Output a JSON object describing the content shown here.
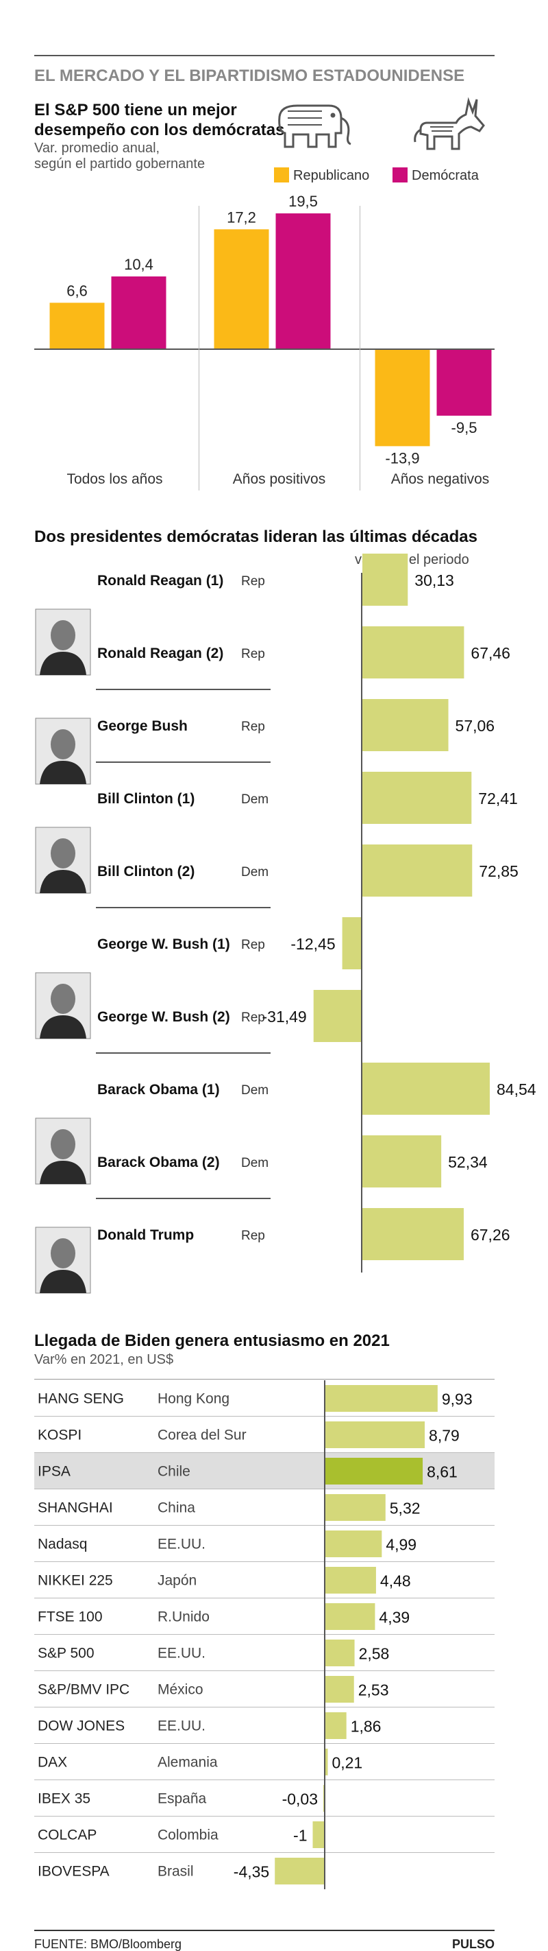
{
  "header": {
    "title": "EL MERCADO Y EL BIPARTIDISMO ESTADOUNIDENSE"
  },
  "colors": {
    "republican": "#FBB917",
    "democrat": "#CC0D7A",
    "bar": "#D4D87A",
    "chile": "#A9BF2E",
    "highlight": "#DEDEDE",
    "rule": "#555555"
  },
  "icons": {
    "republican": "elephant-icon",
    "democrat": "donkey-icon"
  },
  "chart_data": [
    {
      "type": "bar",
      "title": "El S&P 500 tiene un mejor desempeño con los demócratas",
      "subtitle_lines": [
        "Var. promedio anual,",
        "según el partido gobernante"
      ],
      "categories": [
        "Todos los años",
        "Años positivos",
        "Años negativos"
      ],
      "series": [
        {
          "name": "Republicano",
          "values": [
            6.6,
            17.2,
            -13.9
          ],
          "labels": [
            "6,6",
            "17,2",
            "-13,9"
          ]
        },
        {
          "name": "Demócrata",
          "values": [
            10.4,
            19.5,
            -9.5
          ],
          "labels": [
            "10,4",
            "19,5",
            "-9,5"
          ]
        }
      ],
      "legend": "top-right",
      "ylim": [
        -15,
        21
      ]
    },
    {
      "type": "bar",
      "orientation": "horizontal",
      "title": "Dos presidentes demócratas lideran las últimas décadas",
      "value_header": "var% en el periodo",
      "rows": [
        {
          "name": "Ronald Reagan (1)",
          "party": "Rep",
          "value": 30.13,
          "label": "30,13",
          "portrait": "portrait-reagan"
        },
        {
          "name": "Ronald Reagan (2)",
          "party": "Rep",
          "value": 67.46,
          "label": "67,46"
        },
        {
          "name": "George Bush",
          "party": "Rep",
          "value": 57.06,
          "label": "57,06",
          "portrait": "portrait-bush"
        },
        {
          "name": "Bill Clinton (1)",
          "party": "Dem",
          "value": 72.41,
          "label": "72,41",
          "portrait": "portrait-clinton"
        },
        {
          "name": "Bill Clinton (2)",
          "party": "Dem",
          "value": 72.85,
          "label": "72,85"
        },
        {
          "name": "George W. Bush (1)",
          "party": "Rep",
          "value": -12.45,
          "label": "-12,45",
          "portrait": "portrait-wbush"
        },
        {
          "name": "George W. Bush (2)",
          "party": "Rep",
          "value": -31.49,
          "label": "-31,49"
        },
        {
          "name": "Barack Obama (1)",
          "party": "Dem",
          "value": 84.54,
          "label": "84,54",
          "portrait": "portrait-obama"
        },
        {
          "name": "Barack Obama (2)",
          "party": "Dem",
          "value": 52.34,
          "label": "52,34"
        },
        {
          "name": "Donald Trump",
          "party": "Rep",
          "value": 67.26,
          "label": "67,26",
          "portrait": "portrait-trump"
        }
      ]
    },
    {
      "type": "bar",
      "orientation": "horizontal",
      "title": "Llegada de Biden genera entusiasmo en 2021",
      "subtitle": "Var% en 2021, en US$",
      "rows": [
        {
          "index": "HANG SENG",
          "country": "Hong Kong",
          "value": 9.93,
          "label": "9,93"
        },
        {
          "index": "KOSPI",
          "country": "Corea del Sur",
          "value": 8.79,
          "label": "8,79"
        },
        {
          "index": "IPSA",
          "country": "Chile",
          "value": 8.61,
          "label": "8,61",
          "highlight": true
        },
        {
          "index": "SHANGHAI",
          "country": "China",
          "value": 5.32,
          "label": "5,32"
        },
        {
          "index": "Nadasq",
          "country": "EE.UU.",
          "value": 4.99,
          "label": "4,99"
        },
        {
          "index": "NIKKEI 225",
          "country": "Japón",
          "value": 4.48,
          "label": "4,48"
        },
        {
          "index": "FTSE 100",
          "country": "R.Unido",
          "value": 4.39,
          "label": "4,39"
        },
        {
          "index": "S&P 500",
          "country": "EE.UU.",
          "value": 2.58,
          "label": "2,58"
        },
        {
          "index": "S&P/BMV IPC",
          "country": "México",
          "value": 2.53,
          "label": "2,53"
        },
        {
          "index": "DOW JONES",
          "country": "EE.UU.",
          "value": 1.86,
          "label": "1,86"
        },
        {
          "index": "DAX",
          "country": "Alemania",
          "value": 0.21,
          "label": "0,21"
        },
        {
          "index": "IBEX 35",
          "country": "España",
          "value": -0.03,
          "label": "-0,03"
        },
        {
          "index": "COLCAP",
          "country": "Colombia",
          "value": -1,
          "label": "-1"
        },
        {
          "index": "IBOVESPA",
          "country": "Brasil",
          "value": -4.35,
          "label": "-4,35"
        }
      ]
    }
  ],
  "footer": {
    "source": "FUENTE: BMO/Bloomberg",
    "brand": "PULSO"
  }
}
